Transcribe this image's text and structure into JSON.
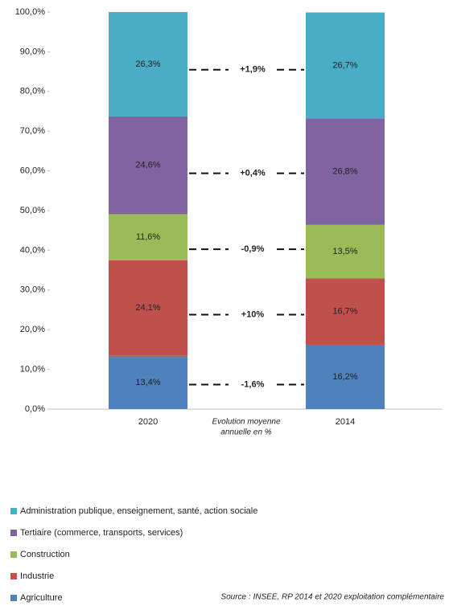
{
  "chart_data": {
    "type": "stacked_bar",
    "categories": [
      "2020",
      "2014"
    ],
    "middle_label": [
      "Evolution moyenne",
      "annuelle en %"
    ],
    "series": [
      {
        "name": "Agriculture",
        "color": "#4f81bd",
        "values": [
          13.4,
          16.2
        ],
        "value_labels": [
          "13,4%",
          "16,2%"
        ],
        "evolution": "-1,6%"
      },
      {
        "name": "Industrie",
        "color": "#c0504d",
        "values": [
          24.1,
          16.7
        ],
        "value_labels": [
          "24,1%",
          "16,7%"
        ],
        "evolution": "+10%"
      },
      {
        "name": "Construction",
        "color": "#9bbb59",
        "values": [
          11.6,
          13.5
        ],
        "value_labels": [
          "11,6%",
          "13,5%"
        ],
        "evolution": "-0,9%"
      },
      {
        "name": "Tertiaire (commerce, transports, services)",
        "color": "#8064a2",
        "values": [
          24.6,
          26.8
        ],
        "value_labels": [
          "24,6%",
          "26,8%"
        ],
        "evolution": "+0,4%"
      },
      {
        "name": "Administration publique, enseignement, santé, action sociale",
        "color": "#4bacc6",
        "values": [
          26.3,
          26.7
        ],
        "value_labels": [
          "26,3%",
          "26,7%"
        ],
        "evolution": "+1,9%"
      }
    ],
    "ylim": [
      0,
      100
    ],
    "yticks": [
      {
        "value": 0,
        "label": "0,0%"
      },
      {
        "value": 10,
        "label": "10,0%"
      },
      {
        "value": 20,
        "label": "20,0%"
      },
      {
        "value": 30,
        "label": "30,0%"
      },
      {
        "value": 40,
        "label": "40,0%"
      },
      {
        "value": 50,
        "label": "50,0%"
      },
      {
        "value": 60,
        "label": "60,0%"
      },
      {
        "value": 70,
        "label": "70,0%"
      },
      {
        "value": 80,
        "label": "80,0%"
      },
      {
        "value": 90,
        "label": "90,0%"
      },
      {
        "value": 100,
        "label": "100,0%"
      }
    ],
    "grid": false,
    "source": "Source : INSEE, RP 2014 et 2020 exploitation complémentaire"
  }
}
